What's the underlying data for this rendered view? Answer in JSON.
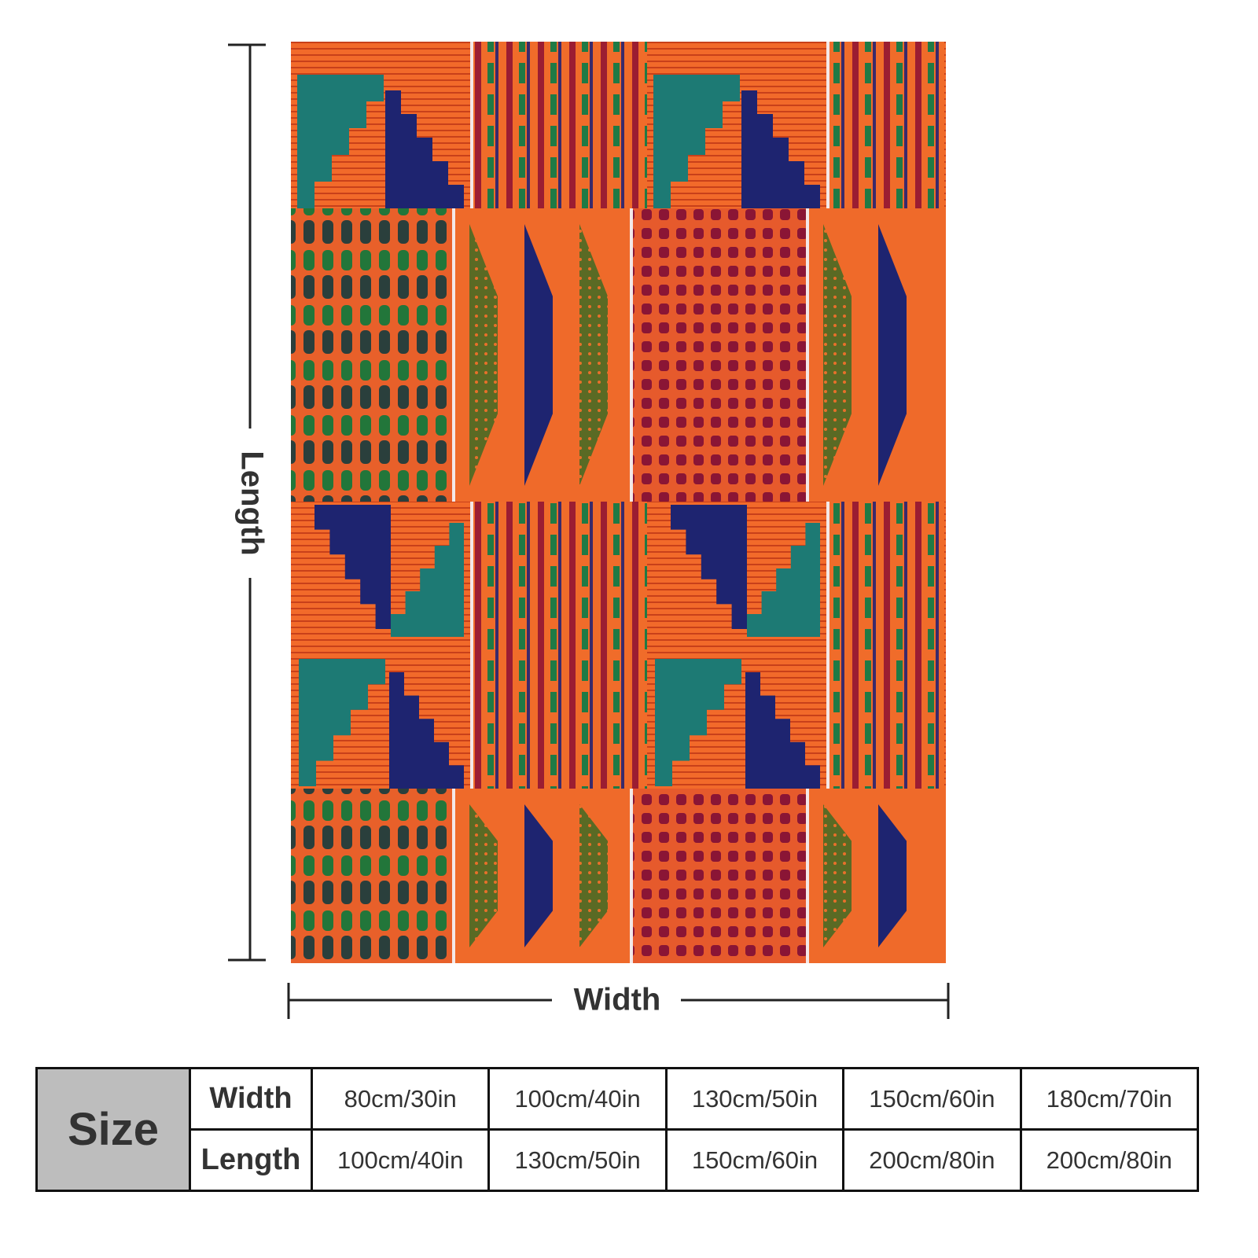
{
  "dimensions": {
    "length_label": "Length",
    "width_label": "Width"
  },
  "table": {
    "title": "Size",
    "rows": [
      {
        "label": "Width",
        "values": [
          "80cm/30in",
          "100cm/40in",
          "130cm/50in",
          "150cm/60in",
          "180cm/70in"
        ]
      },
      {
        "label": "Length",
        "values": [
          "100cm/40in",
          "130cm/50in",
          "150cm/60in",
          "200cm/80in",
          "200cm/80in"
        ]
      }
    ]
  }
}
